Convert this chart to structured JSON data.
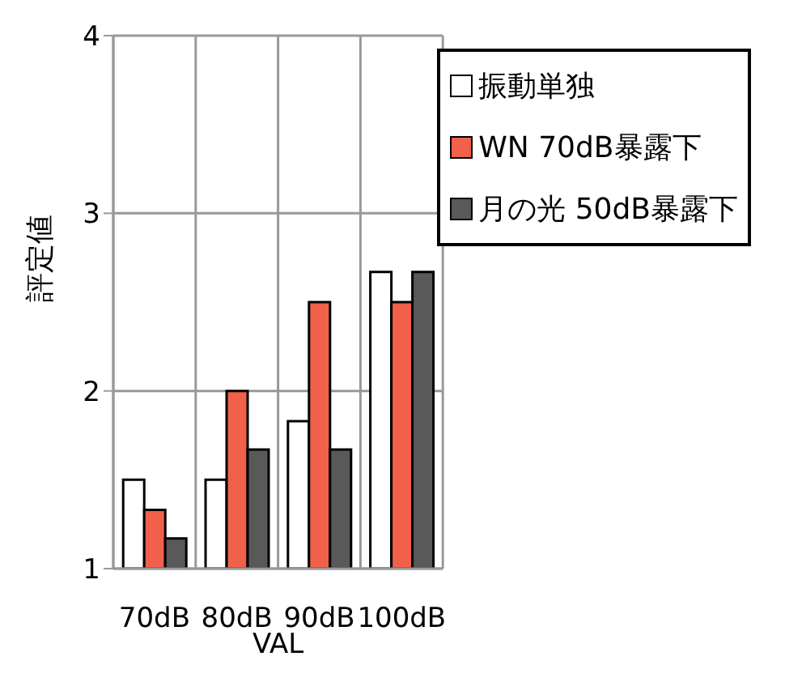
{
  "chart_data": {
    "type": "bar",
    "xlabel": "VAL",
    "ylabel": "評定値",
    "categories": [
      "70dB",
      "80dB",
      "90dB",
      "100dB"
    ],
    "series": [
      {
        "name": "振動単独",
        "color": "#ffffff",
        "values": [
          1.5,
          1.5,
          1.83,
          2.67
        ]
      },
      {
        "name": "WN 70dB暴露下",
        "color": "#f0604a",
        "values": [
          1.33,
          2.0,
          2.5,
          2.5
        ]
      },
      {
        "name": "月の光 50dB暴露下",
        "color": "#595959",
        "values": [
          1.17,
          1.67,
          1.67,
          2.67
        ]
      }
    ],
    "ylim": [
      1,
      4
    ],
    "yticks": [
      1,
      2,
      3,
      4
    ],
    "grid": true,
    "legend": "top right"
  }
}
